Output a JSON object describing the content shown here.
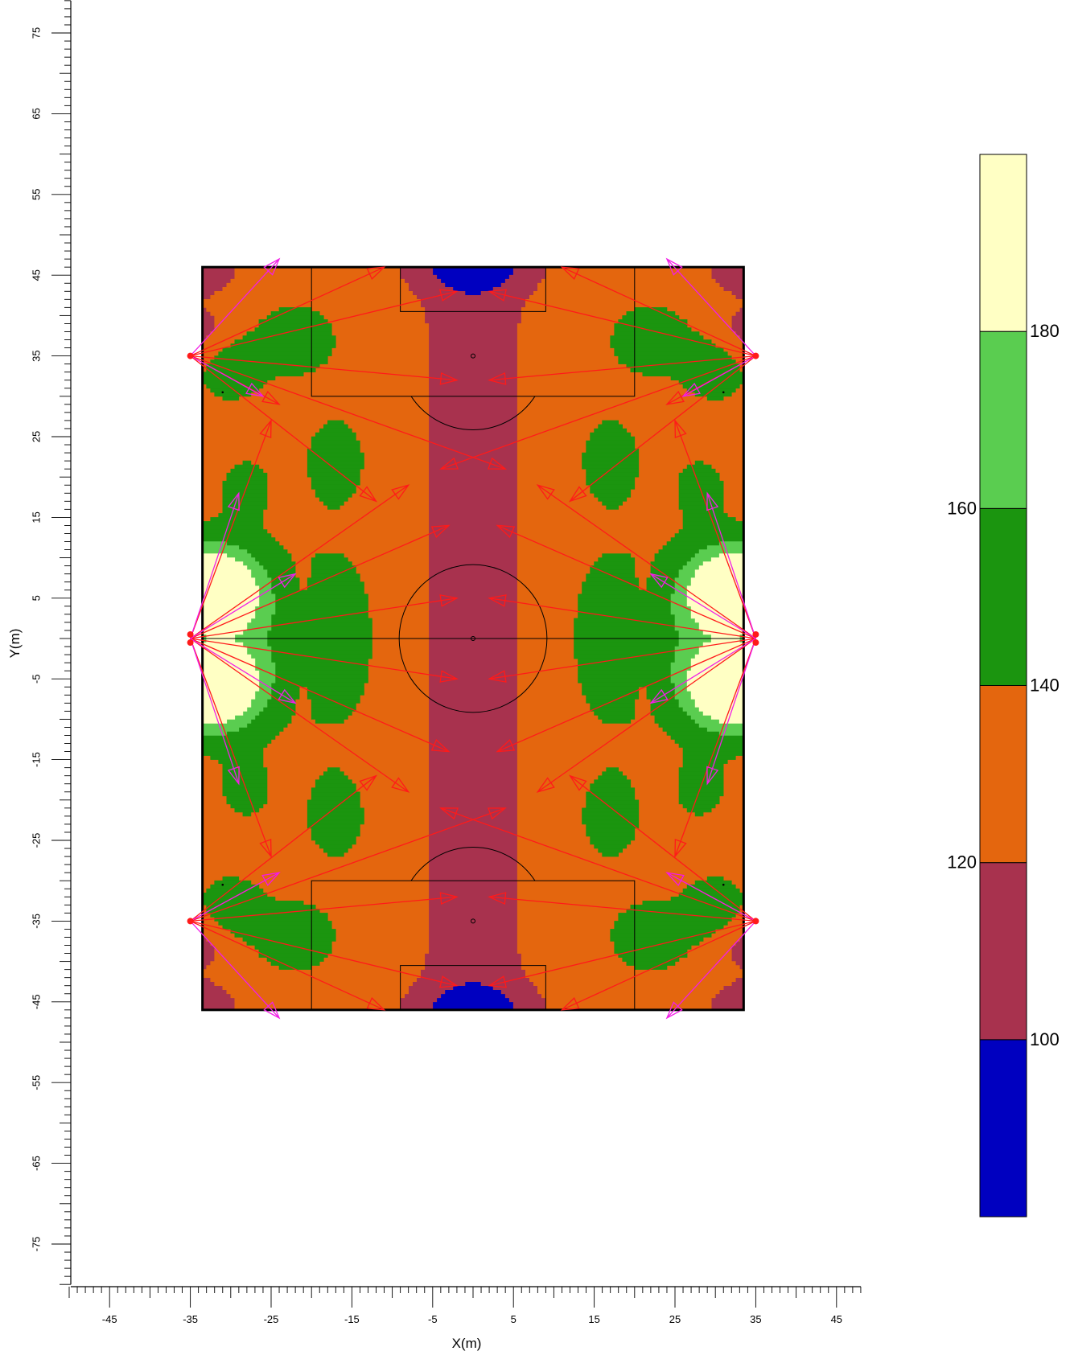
{
  "chart_data": {
    "type": "heatmap",
    "title": "",
    "xlabel": "X(m)",
    "ylabel": "Y(m)",
    "xlim": [
      -50,
      48
    ],
    "ylim": [
      -80,
      79
    ],
    "x_ticks": [
      -45,
      -35,
      -25,
      -15,
      -5,
      5,
      15,
      25,
      35,
      45
    ],
    "y_ticks": [
      -75,
      -65,
      -55,
      -45,
      -35,
      -25,
      -15,
      -5,
      5,
      15,
      25,
      35,
      45,
      55,
      65,
      75
    ],
    "field": {
      "x_range": [
        -33.5,
        33.5
      ],
      "y_range": [
        -46,
        46
      ],
      "penalty_box": {
        "x_half": 20,
        "y_depth": 16
      },
      "goal_box": {
        "x_half": 9,
        "y_depth": 5.5
      },
      "center_circle_radius": 9.15,
      "penalty_spot_offset": 11
    },
    "legend": {
      "placement": "right",
      "bands": [
        {
          "range": [
            80,
            100
          ],
          "color": "#0000C0"
        },
        {
          "range": [
            100,
            120
          ],
          "color": "#A8324E"
        },
        {
          "range": [
            120,
            140
          ],
          "color": "#E4660E"
        },
        {
          "range": [
            140,
            160
          ],
          "color": "#1B950F"
        },
        {
          "range": [
            160,
            180
          ],
          "color": "#5ACD50"
        },
        {
          "range": [
            180,
            200
          ],
          "color": "#FFFFC4"
        }
      ],
      "labels": [
        "100",
        "120",
        "140",
        "160",
        "180"
      ]
    },
    "luminaire_poles": [
      {
        "x": -35,
        "y": 35
      },
      {
        "x": 35,
        "y": 35
      },
      {
        "x": -35,
        "y": 0.5
      },
      {
        "x": 35,
        "y": 0.5
      },
      {
        "x": -35,
        "y": -0.5
      },
      {
        "x": 35,
        "y": -0.5
      },
      {
        "x": -35,
        "y": -35
      },
      {
        "x": 35,
        "y": -35
      }
    ],
    "aim_points": {
      "red": [
        [
          -35,
          35,
          -11,
          46
        ],
        [
          -35,
          35,
          -2,
          32
        ],
        [
          -35,
          35,
          -24,
          29
        ],
        [
          -35,
          35,
          -12,
          17
        ],
        [
          -35,
          35,
          -2,
          43
        ],
        [
          35,
          35,
          11,
          46
        ],
        [
          35,
          35,
          2,
          32
        ],
        [
          35,
          35,
          24,
          29
        ],
        [
          35,
          35,
          12,
          17
        ],
        [
          35,
          35,
          2,
          43
        ],
        [
          -35,
          0,
          -2,
          5
        ],
        [
          -35,
          0,
          -2,
          -5
        ],
        [
          -35,
          0,
          -3,
          14
        ],
        [
          -35,
          0,
          -3,
          -14
        ],
        [
          -35,
          0,
          -25,
          27
        ],
        [
          -35,
          0,
          -25,
          -27
        ],
        [
          -35,
          0,
          -8,
          19
        ],
        [
          -35,
          0,
          -8,
          -19
        ],
        [
          35,
          0,
          2,
          5
        ],
        [
          35,
          0,
          2,
          -5
        ],
        [
          35,
          0,
          3,
          14
        ],
        [
          35,
          0,
          3,
          -14
        ],
        [
          35,
          0,
          25,
          27
        ],
        [
          35,
          0,
          25,
          -27
        ],
        [
          35,
          0,
          8,
          19
        ],
        [
          35,
          0,
          8,
          -19
        ],
        [
          -35,
          -35,
          -11,
          -46
        ],
        [
          -35,
          -35,
          -2,
          -32
        ],
        [
          -35,
          -35,
          -24,
          -29
        ],
        [
          -35,
          -35,
          -12,
          -17
        ],
        [
          -35,
          -35,
          -2,
          -43
        ],
        [
          35,
          -35,
          11,
          -46
        ],
        [
          35,
          -35,
          2,
          -32
        ],
        [
          35,
          -35,
          24,
          -29
        ],
        [
          35,
          -35,
          12,
          -17
        ],
        [
          35,
          -35,
          2,
          -43
        ],
        [
          -35,
          35,
          4,
          21
        ],
        [
          35,
          35,
          -4,
          21
        ],
        [
          -35,
          -35,
          4,
          -21
        ],
        [
          35,
          -35,
          -4,
          -21
        ]
      ],
      "magenta": [
        [
          -35,
          35,
          -24,
          47
        ],
        [
          35,
          35,
          24,
          47
        ],
        [
          -35,
          -35,
          -24,
          -47
        ],
        [
          35,
          -35,
          24,
          -47
        ],
        [
          -35,
          0,
          -22,
          8
        ],
        [
          -35,
          0,
          -22,
          -8
        ],
        [
          35,
          0,
          22,
          8
        ],
        [
          35,
          0,
          22,
          -8
        ],
        [
          -35,
          0,
          -29,
          18
        ],
        [
          -35,
          0,
          -29,
          -18
        ],
        [
          35,
          0,
          29,
          18
        ],
        [
          35,
          0,
          29,
          -18
        ],
        [
          -35,
          -35,
          -24,
          -29
        ],
        [
          35,
          -35,
          24,
          -29
        ],
        [
          -35,
          35,
          -26,
          30
        ],
        [
          35,
          35,
          26,
          30
        ]
      ]
    }
  }
}
